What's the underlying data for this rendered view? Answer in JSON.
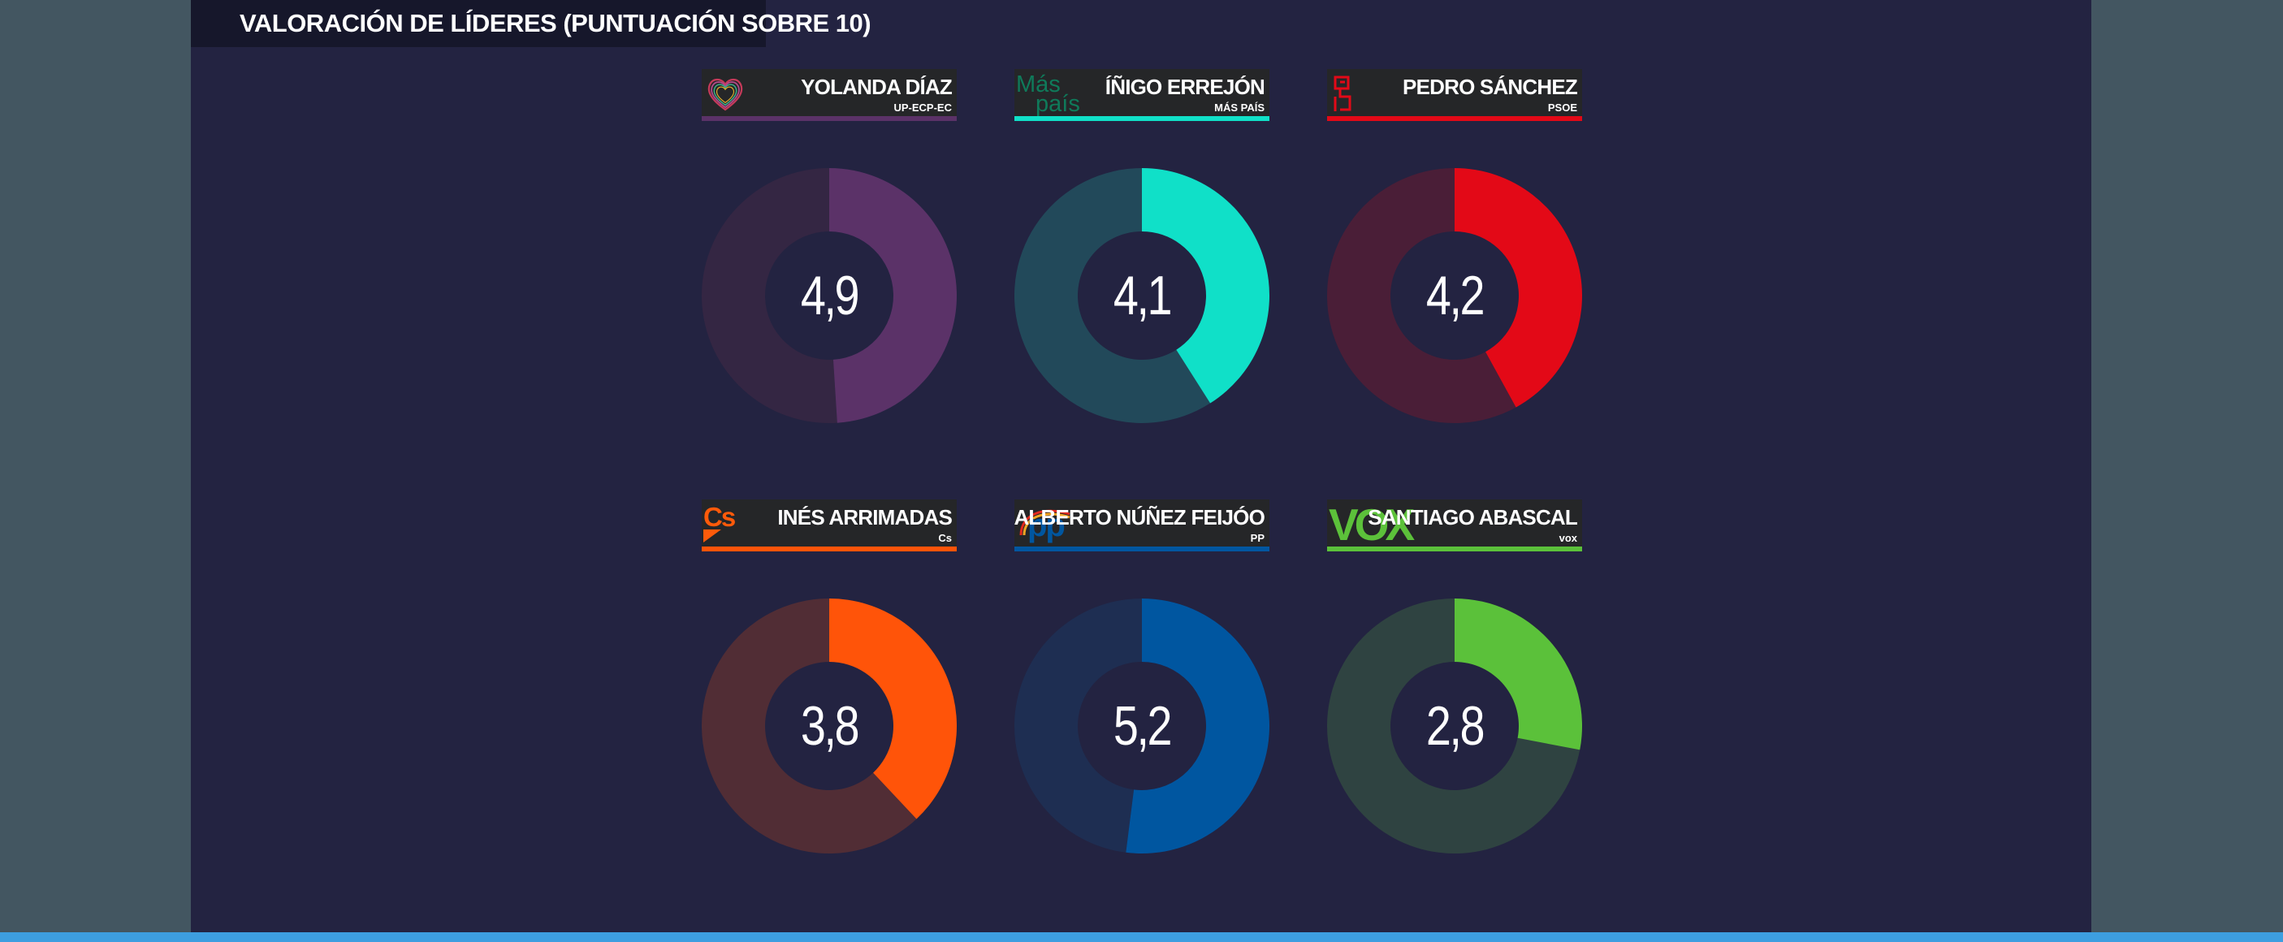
{
  "title": "VALORACIÓN DE LÍDERES (PUNTUACIÓN SOBRE 10)",
  "chart_data": {
    "type": "pie",
    "variant": "donut",
    "title": "VALORACIÓN DE LÍDERES (PUNTUACIÓN SOBRE 10)",
    "max": 10,
    "leaders": [
      {
        "name": "YOLANDA DÍAZ",
        "party": "UP-ECP-EC",
        "value": 4.9,
        "label": "4,9",
        "color": "#5b3268",
        "track": "#342643",
        "logo": "heart-logo"
      },
      {
        "name": "ÍÑIGO ERREJÓN",
        "party": "MÁS PAÍS",
        "value": 4.1,
        "label": "4,1",
        "color": "#10e0c8",
        "track": "#22495a",
        "logo": "mas-pais-logo",
        "logo_text": [
          "Más",
          "país"
        ]
      },
      {
        "name": "PEDRO SÁNCHEZ",
        "party": "PSOE",
        "value": 4.2,
        "label": "4,2",
        "color": "#e30917",
        "track": "#4a1e37",
        "logo": "psoe-logo"
      },
      {
        "name": "INÉS ARRIMADAS",
        "party": "Cs",
        "value": 3.8,
        "label": "3,8",
        "color": "#ff5409",
        "track": "#512d35",
        "logo": "cs-logo",
        "logo_text": "Cs"
      },
      {
        "name": "ALBERTO NÚÑEZ FEIJÓO",
        "party": "PP",
        "value": 5.2,
        "label": "5,2",
        "color": "#0056a0",
        "track": "#1e2e52",
        "logo": "pp-logo",
        "logo_text": "pp"
      },
      {
        "name": "SANTIAGO ABASCAL",
        "party": "vox",
        "value": 2.8,
        "label": "2,8",
        "color": "#5bc13a",
        "track": "#2f4341",
        "logo": "vox-logo",
        "logo_text": "VOX"
      }
    ]
  }
}
